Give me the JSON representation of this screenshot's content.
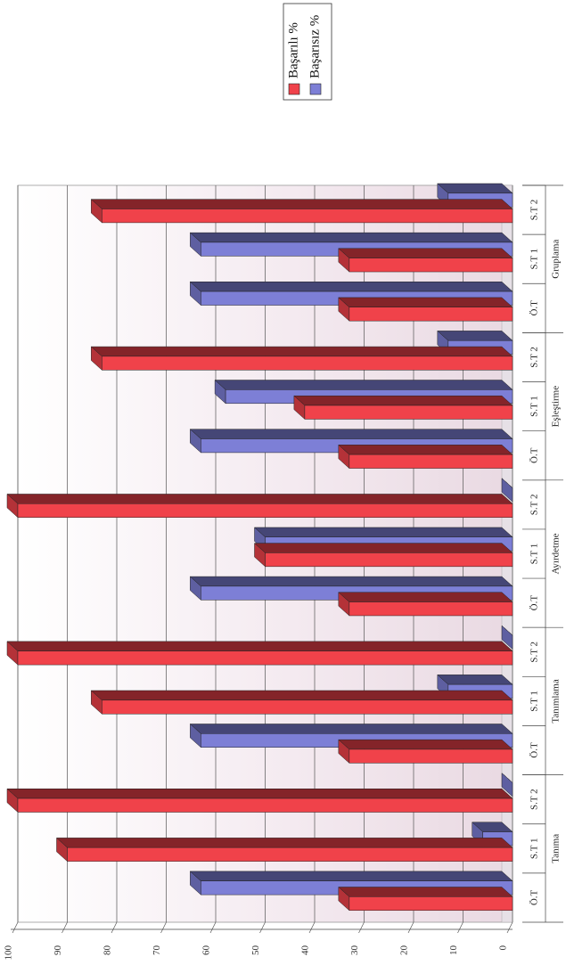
{
  "chart_data": {
    "type": "bar",
    "orientation": "horizontal-3d",
    "groups": [
      {
        "name": "Tanıma",
        "categories": [
          "Ö.T",
          "S.T 1",
          "S.T 2"
        ]
      },
      {
        "name": "Tanımlama",
        "categories": [
          "Ö.T",
          "S.T 1",
          "S.T 2"
        ]
      },
      {
        "name": "Ayırdetme",
        "categories": [
          "Ö.T",
          "S.T 1",
          "S.T 2"
        ]
      },
      {
        "name": "Eşleştirme",
        "categories": [
          "Ö.T",
          "S.T 1",
          "S.T 2"
        ]
      },
      {
        "name": "Gruplama",
        "categories": [
          "Ö.T",
          "S.T 1",
          "S.T 2"
        ]
      }
    ],
    "series": [
      {
        "name": "Başarılı %",
        "color": "#f0424a",
        "values": [
          33,
          90,
          100,
          33,
          83,
          100,
          33,
          50,
          100,
          33,
          42,
          83,
          33,
          33,
          83
        ]
      },
      {
        "name": "Başarısız %",
        "color": "#7d7fd6",
        "values": [
          63,
          6,
          0,
          63,
          13,
          0,
          63,
          50,
          0,
          63,
          58,
          13,
          63,
          63,
          13
        ]
      }
    ],
    "axis_ticks": [
      "0",
      "10",
      "20",
      "30",
      "40",
      "50",
      "60",
      "70",
      "80",
      "90",
      "100"
    ],
    "vlim": [
      0,
      100
    ],
    "grid": true,
    "legend_position": "top-right"
  }
}
